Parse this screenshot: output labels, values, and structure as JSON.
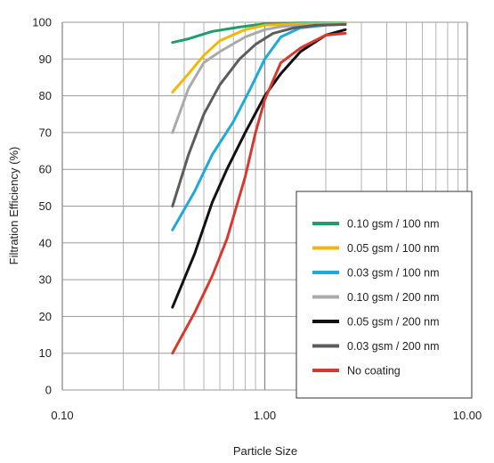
{
  "chart_data": {
    "type": "line",
    "title": "",
    "xlabel": "Particle Size",
    "ylabel": "Filtration Efficiency (%)",
    "xscale": "log",
    "xlim": [
      0.1,
      10
    ],
    "ylim": [
      0,
      100
    ],
    "xticks": [
      "0.10",
      "1.00",
      "10.00"
    ],
    "yticks": [
      "0",
      "10",
      "20",
      "30",
      "40",
      "50",
      "60",
      "70",
      "80",
      "90",
      "100"
    ],
    "grid": true,
    "legend_position": "bottom-right",
    "series": [
      {
        "name": "0.10 gsm / 100 nm",
        "color": "#1e9e6a",
        "x": [
          0.35,
          0.42,
          0.55,
          0.75,
          1.0,
          1.5,
          2.5
        ],
        "y": [
          94.5,
          95.5,
          97.5,
          98.7,
          99.6,
          99.8,
          99.8
        ]
      },
      {
        "name": "0.05 gsm / 100 nm",
        "color": "#f2b705",
        "x": [
          0.35,
          0.42,
          0.5,
          0.6,
          0.8,
          1.0,
          1.5,
          2.5
        ],
        "y": [
          81,
          86,
          91,
          95,
          98,
          99.2,
          99.6,
          99.7
        ]
      },
      {
        "name": "0.03 gsm / 100 nm",
        "color": "#1fa8dc",
        "x": [
          0.35,
          0.45,
          0.55,
          0.7,
          0.85,
          1.0,
          1.2,
          1.5,
          2.0,
          2.5
        ],
        "y": [
          43.5,
          54,
          64,
          73,
          82,
          90,
          96,
          98.5,
          99.2,
          99.5
        ]
      },
      {
        "name": "0.10 gsm / 200 nm",
        "color": "#aaaaaa",
        "x": [
          0.35,
          0.42,
          0.5,
          0.6,
          0.8,
          1.0,
          1.2,
          1.5,
          2.0,
          2.5
        ],
        "y": [
          70,
          82,
          89,
          92,
          96,
          98,
          98.8,
          99.2,
          99.4,
          99.5
        ]
      },
      {
        "name": "0.05 gsm / 200 nm",
        "color": "#111111",
        "x": [
          0.35,
          0.45,
          0.55,
          0.65,
          0.8,
          1.0,
          1.2,
          1.5,
          2.0,
          2.5
        ],
        "y": [
          22.5,
          37,
          51,
          60,
          70,
          80,
          86,
          92,
          96.5,
          98
        ]
      },
      {
        "name": "0.03 gsm / 200 nm",
        "color": "#5c5c5c",
        "x": [
          0.35,
          0.42,
          0.5,
          0.6,
          0.75,
          0.9,
          1.1,
          1.4,
          1.8,
          2.5
        ],
        "y": [
          50,
          64,
          75,
          83,
          90,
          94,
          97,
          98.5,
          99.2,
          99.4
        ]
      },
      {
        "name": "No coating",
        "color": "#d63a2f",
        "x": [
          0.35,
          0.45,
          0.55,
          0.65,
          0.8,
          0.9,
          1.0,
          1.2,
          1.5,
          2.0,
          2.5
        ],
        "y": [
          10,
          21,
          31,
          41,
          58,
          70,
          79,
          89,
          93,
          96.5,
          97
        ]
      }
    ]
  }
}
